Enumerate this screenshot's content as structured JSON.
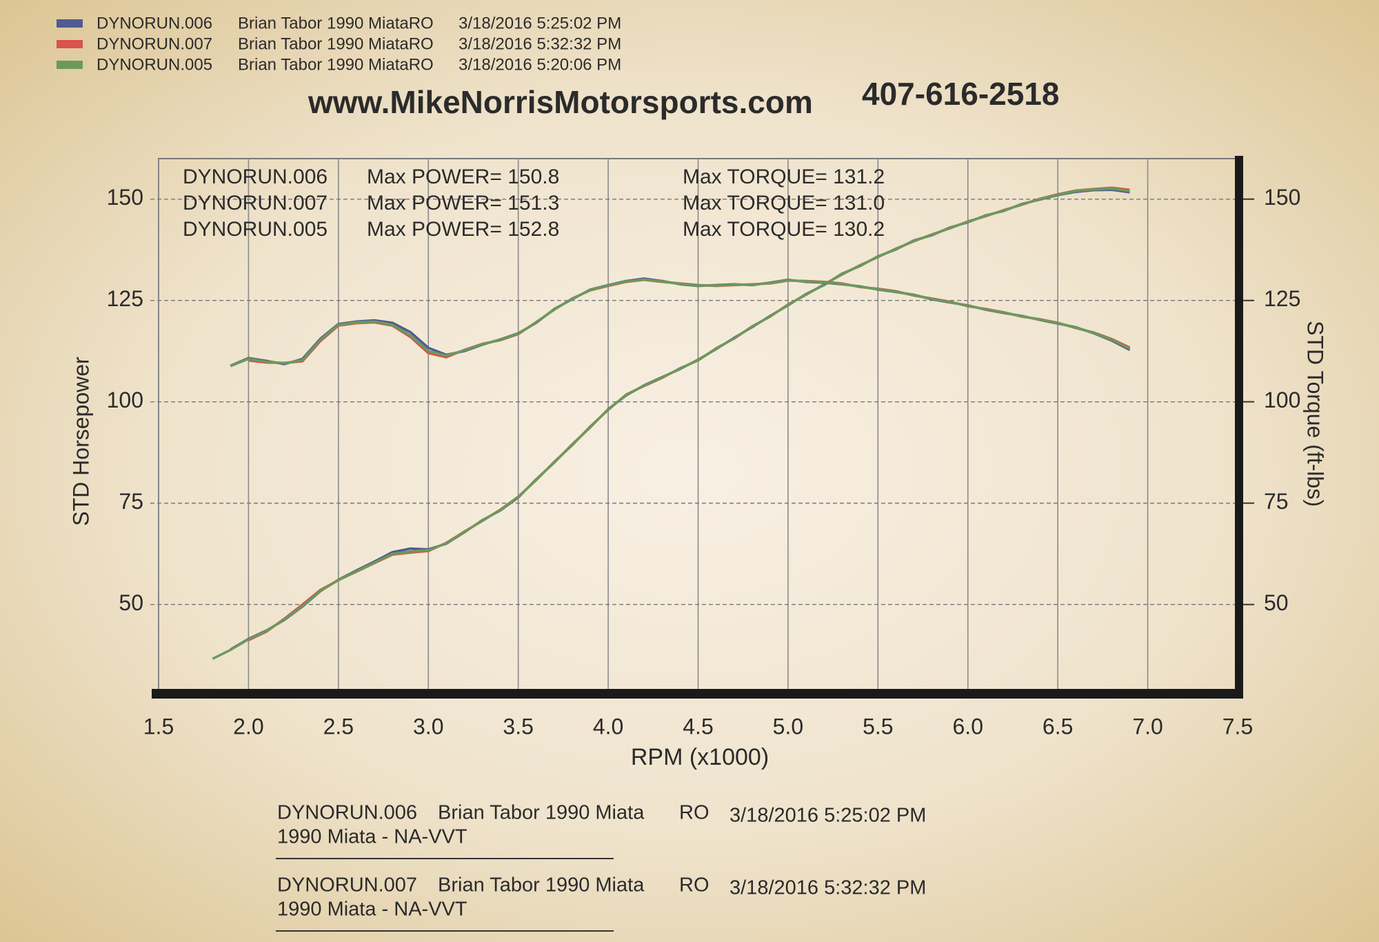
{
  "chart_data": {
    "type": "line",
    "title": "www.MikeNorrisMotorsports.com",
    "subtitle": "407-616-2518",
    "xlabel": "RPM (x1000)",
    "ylabel": "STD Horsepower",
    "y2label": "STD Torque (ft-lbs)",
    "xlim": [
      1.5,
      7.5
    ],
    "xticks": [
      1.5,
      {
        "value": 2,
        "label": "2.0"
      },
      2.5,
      {
        "value": 3,
        "label": "3.0"
      },
      3.5,
      {
        "value": 4,
        "label": "4.0"
      },
      4.5,
      {
        "value": 5,
        "label": "5.0"
      },
      5.5,
      {
        "value": 6,
        "label": "6.0"
      },
      6.5,
      {
        "value": 7,
        "label": "7.0"
      },
      7.5
    ],
    "ylim": [
      29,
      160
    ],
    "yticks": [
      50,
      75,
      100,
      125,
      150
    ],
    "y2lim": [
      29,
      160
    ],
    "y2ticks": [
      50,
      75,
      100,
      125,
      150
    ],
    "grid": true,
    "x": [
      1.8,
      1.9,
      2.0,
      2.1,
      2.2,
      2.3,
      2.4,
      2.5,
      2.6,
      2.7,
      2.8,
      2.9,
      3.0,
      3.1,
      3.2,
      3.3,
      3.4,
      3.5,
      3.6,
      3.7,
      3.8,
      3.9,
      4.0,
      4.1,
      4.2,
      4.3,
      4.4,
      4.5,
      4.6,
      4.7,
      4.8,
      4.9,
      5.0,
      5.1,
      5.2,
      5.3,
      5.4,
      5.5,
      5.6,
      5.7,
      5.8,
      5.9,
      6.0,
      6.1,
      6.2,
      6.3,
      6.4,
      6.5,
      6.6,
      6.7,
      6.8,
      6.9
    ],
    "series": [
      {
        "name": "DYNORUN.006",
        "description": "Brian Tabor 1990 MiataRO",
        "timestamp": "3/18/2016 5:25:02 PM",
        "color": "#4f5b94",
        "values": [
          null,
          38.9,
          41.5,
          43.6,
          46.2,
          49.5,
          53.3,
          56.1,
          58.4,
          60.6,
          62.9,
          63.8,
          63.6,
          65.0,
          67.8,
          70.8,
          73.2,
          76.4,
          80.9,
          85.0,
          89.5,
          93.7,
          98.2,
          101.6,
          104.1,
          106.1,
          108.1,
          110.4,
          113.0,
          115.8,
          118.4,
          121.2,
          123.8,
          126.6,
          128.8,
          131.6,
          133.5,
          135.9,
          137.6,
          139.8,
          141.1,
          143.0,
          144.3,
          146.0,
          147.1,
          148.8,
          149.9,
          151.0,
          151.8,
          152.2,
          152.3,
          151.7
        ]
      },
      {
        "name": "DYNORUN.007",
        "description": "Brian Tabor 1990 MiataRO",
        "timestamp": "3/18/2016 5:32:32 PM",
        "color": "#d9534f",
        "values": [
          null,
          null,
          41.2,
          43.3,
          46.5,
          50.0,
          53.6,
          56.0,
          58.1,
          60.2,
          62.3,
          62.8,
          63.2,
          65.2,
          68.0,
          70.6,
          73.4,
          76.6,
          80.7,
          85.2,
          89.3,
          93.9,
          98.0,
          101.8,
          103.9,
          105.9,
          108.3,
          110.2,
          113.2,
          115.6,
          118.6,
          121.0,
          124.0,
          126.4,
          129.0,
          131.4,
          133.7,
          135.7,
          137.8,
          139.6,
          141.3,
          142.8,
          144.5,
          145.8,
          147.3,
          148.6,
          150.1,
          151.2,
          152.1,
          152.5,
          152.8,
          152.3
        ]
      },
      {
        "name": "DYNORUN.005",
        "description": "Brian Tabor 1990 MiataRO",
        "timestamp": "3/18/2016 5:20:06 PM",
        "color": "#6a9a5a",
        "values": [
          36.6,
          38.8,
          41.4,
          43.5,
          46.3,
          49.6,
          53.4,
          56,
          58.2,
          60.3,
          62.5,
          63.1,
          63.4,
          65.1,
          67.9,
          70.7,
          73.3,
          76.5,
          80.8,
          85.1,
          89.4,
          93.8,
          98.1,
          101.7,
          104,
          106,
          108.2,
          110.3,
          113.1,
          115.7,
          118.5,
          121.1,
          123.9,
          126.5,
          128.9,
          131.5,
          133.6,
          135.8,
          137.7,
          139.7,
          141.2,
          142.9,
          144.4,
          145.9,
          147.2,
          148.7,
          150,
          151.1,
          152,
          152.4,
          152.6,
          152
        ]
      },
      {
        "axis": "y2",
        "color": "#4f5b94",
        "values": [
          null,
          108.9,
          110.8,
          110.1,
          109.3,
          110.6,
          115.6,
          119.2,
          119.8,
          120.1,
          119.5,
          117.2,
          113.3,
          111.6,
          112.5,
          114.1,
          115.4,
          116.9,
          119.5,
          122.9,
          125.3,
          127.7,
          128.8,
          129.8,
          130.4,
          129.8,
          129.0,
          128.6,
          128.8,
          129.0,
          128.8,
          129.4,
          130.1,
          129.6,
          129.4,
          129.0,
          128.5,
          127.7,
          127.1,
          126.4,
          125.3,
          124.5,
          123.8,
          122.7,
          121.9,
          121.2,
          120.2,
          119.3,
          118.4,
          116.9,
          115.1,
          112.8
        ]
      },
      {
        "axis": "y2",
        "color": "#d9534f",
        "values": [
          null,
          null,
          110.2,
          109.7,
          109.6,
          110.0,
          115.0,
          118.8,
          119.4,
          119.6,
          118.8,
          116.0,
          112.0,
          111.0,
          112.8,
          114.3,
          115.2,
          116.7,
          119.7,
          122.7,
          125.5,
          127.5,
          128.6,
          129.6,
          130.1,
          129.6,
          129.2,
          128.8,
          128.6,
          128.8,
          129.0,
          129.2,
          129.9,
          129.8,
          129.6,
          129.2,
          128.3,
          127.9,
          127.3,
          126.2,
          125.5,
          124.7,
          123.6,
          122.9,
          122.1,
          121.0,
          120.4,
          119.5,
          118.2,
          117.1,
          115.5,
          113.4
        ]
      },
      {
        "axis": "y2",
        "color": "#6a9a5a",
        "values": [
          null,
          108.8,
          110.6,
          109.9,
          109.5,
          110.3,
          115.3,
          119,
          119.6,
          119.8,
          119,
          116.4,
          112.5,
          111.4,
          112.7,
          114.2,
          115.3,
          116.8,
          119.6,
          122.8,
          125.4,
          127.6,
          128.7,
          129.7,
          130.2,
          129.7,
          129.1,
          128.7,
          128.7,
          128.9,
          128.9,
          129.3,
          130,
          129.7,
          129.5,
          129.1,
          128.4,
          127.8,
          127.2,
          126.3,
          125.4,
          124.6,
          123.7,
          122.8,
          122,
          121.1,
          120.3,
          119.4,
          118.3,
          117,
          115.3,
          113.1
        ]
      }
    ],
    "summary": [
      {
        "run": "DYNORUN.006",
        "power": "Max POWER= 150.8",
        "torque": "Max TORQUE= 131.2"
      },
      {
        "run": "DYNORUN.007",
        "power": "Max POWER= 151.3",
        "torque": "Max TORQUE= 131.0"
      },
      {
        "run": "DYNORUN.005",
        "power": "Max POWER= 152.8",
        "torque": "Max TORQUE= 130.2"
      }
    ],
    "footer": [
      {
        "run": "DYNORUN.006",
        "description": "Brian Tabor 1990 Miata",
        "code": "RO",
        "timestamp": "3/18/2016 5:25:02 PM",
        "note": "1990 Miata - NA-VVT"
      },
      {
        "run": "DYNORUN.007",
        "description": "Brian Tabor 1990 Miata",
        "code": "RO",
        "timestamp": "3/18/2016 5:32:32 PM",
        "note": "1990 Miata - NA-VVT"
      }
    ]
  }
}
